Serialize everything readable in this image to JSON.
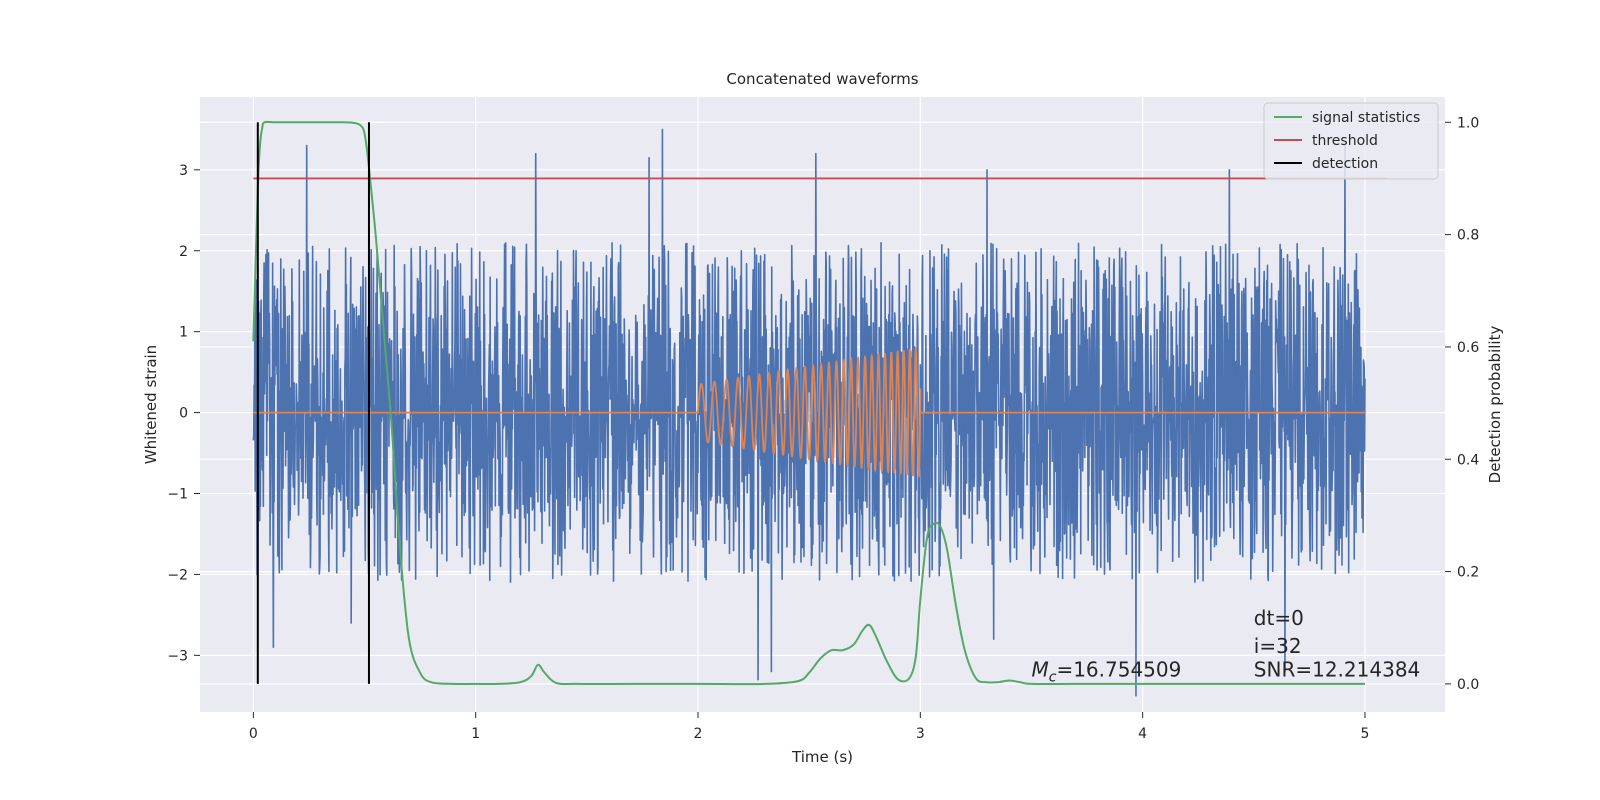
{
  "chart_data": {
    "type": "line",
    "title": "Concatenated waveforms",
    "xlabel": "Time (s)",
    "ylabel": "Whitened strain",
    "ylabel_right": "Detection probability",
    "xlim": [
      -0.24,
      5.36
    ],
    "ylim_left": [
      -3.7,
      3.9
    ],
    "ylim_right": [
      -0.05,
      1.045
    ],
    "x_ticks": [
      0,
      1,
      2,
      3,
      4,
      5
    ],
    "y_ticks_left": [
      -3,
      -2,
      -1,
      0,
      1,
      2,
      3
    ],
    "y_ticks_right": [
      0.0,
      0.2,
      0.4,
      0.6,
      0.8,
      1.0
    ],
    "grid": true,
    "legend_position": "top-right",
    "colors": {
      "strain": "#4c72b0",
      "template": "#dd8452",
      "signal_statistics": "#55a868",
      "threshold": "#c44e52",
      "detection": "#000000",
      "background": "#eaeaf2",
      "grid": "#ffffff"
    },
    "series": [
      {
        "name": "",
        "axis": "left",
        "kind": "noise",
        "x_range": [
          0,
          5
        ],
        "bulk_sigma": 0.8,
        "envelope": 2.1,
        "spike_points": [
          {
            "x": 0.24,
            "y": 3.3
          },
          {
            "x": 1.27,
            "y": 3.2
          },
          {
            "x": 1.78,
            "y": 3.15
          },
          {
            "x": 1.84,
            "y": 3.5
          },
          {
            "x": 2.53,
            "y": 3.2
          },
          {
            "x": 3.3,
            "y": 3.0
          },
          {
            "x": 3.33,
            "y": -2.8
          },
          {
            "x": 3.97,
            "y": -3.5
          },
          {
            "x": 4.39,
            "y": 3.0
          },
          {
            "x": 4.91,
            "y": 3.3
          },
          {
            "x": 0.09,
            "y": -2.9
          },
          {
            "x": 2.27,
            "y": -3.3
          },
          {
            "x": 2.33,
            "y": -3.2
          },
          {
            "x": 4.64,
            "y": -3.2
          },
          {
            "x": 0.44,
            "y": -2.6
          }
        ]
      },
      {
        "name": "",
        "axis": "left",
        "kind": "chirp",
        "x_range": [
          0,
          5
        ],
        "chirp_start": 2.0,
        "chirp_end": 3.0,
        "amp_start": 0.35,
        "amp_end": 0.8,
        "freq_start": 16,
        "freq_end": 38
      },
      {
        "name": "signal statistics",
        "axis": "right",
        "x": [
          0.0,
          0.02,
          0.03,
          0.04,
          0.05,
          0.1,
          0.2,
          0.3,
          0.4,
          0.45,
          0.48,
          0.5,
          0.52,
          0.55,
          0.58,
          0.62,
          0.66,
          0.7,
          0.75,
          0.8,
          0.9,
          1.0,
          1.1,
          1.2,
          1.25,
          1.28,
          1.31,
          1.36,
          1.45,
          1.7,
          2.0,
          2.3,
          2.45,
          2.5,
          2.55,
          2.6,
          2.65,
          2.7,
          2.74,
          2.77,
          2.8,
          2.85,
          2.9,
          2.95,
          2.98,
          3.0,
          3.03,
          3.06,
          3.09,
          3.12,
          3.16,
          3.2,
          3.25,
          3.3,
          3.35,
          3.4,
          3.45,
          3.5,
          3.7,
          4.0,
          4.5,
          5.0
        ],
        "y": [
          0.61,
          0.88,
          0.96,
          0.99,
          1.0,
          1.0,
          1.0,
          1.0,
          1.0,
          0.999,
          0.995,
          0.98,
          0.92,
          0.8,
          0.66,
          0.47,
          0.24,
          0.08,
          0.02,
          0.003,
          0.0,
          0.0,
          0.0,
          0.003,
          0.014,
          0.034,
          0.02,
          0.002,
          0.0,
          0.0,
          0.0,
          0.0,
          0.005,
          0.02,
          0.045,
          0.06,
          0.06,
          0.07,
          0.095,
          0.105,
          0.085,
          0.04,
          0.008,
          0.01,
          0.05,
          0.15,
          0.26,
          0.285,
          0.28,
          0.24,
          0.14,
          0.06,
          0.01,
          0.003,
          0.003,
          0.006,
          0.003,
          0.0,
          0.0,
          0.0,
          0.0,
          0.0
        ]
      },
      {
        "name": "threshold",
        "axis": "right",
        "x": [
          0.0,
          5.1
        ],
        "y": [
          0.9,
          0.9
        ]
      },
      {
        "name": "detection",
        "axis": "right",
        "kind": "vlines",
        "x": [
          0.02,
          0.52
        ],
        "y_range": [
          0.0,
          1.0
        ]
      }
    ],
    "annotations": [
      {
        "text": "dt=0",
        "x": 4.5,
        "y_right": 0.105
      },
      {
        "text": "i=32",
        "x": 4.5,
        "y_right": 0.055
      },
      {
        "text": "SNR=12.214384",
        "x": 4.5,
        "y_right": 0.013
      },
      {
        "text_prefix": "M",
        "subscript": "c",
        "text": "=16.754509",
        "x": 3.5,
        "y_right": 0.013
      }
    ]
  }
}
